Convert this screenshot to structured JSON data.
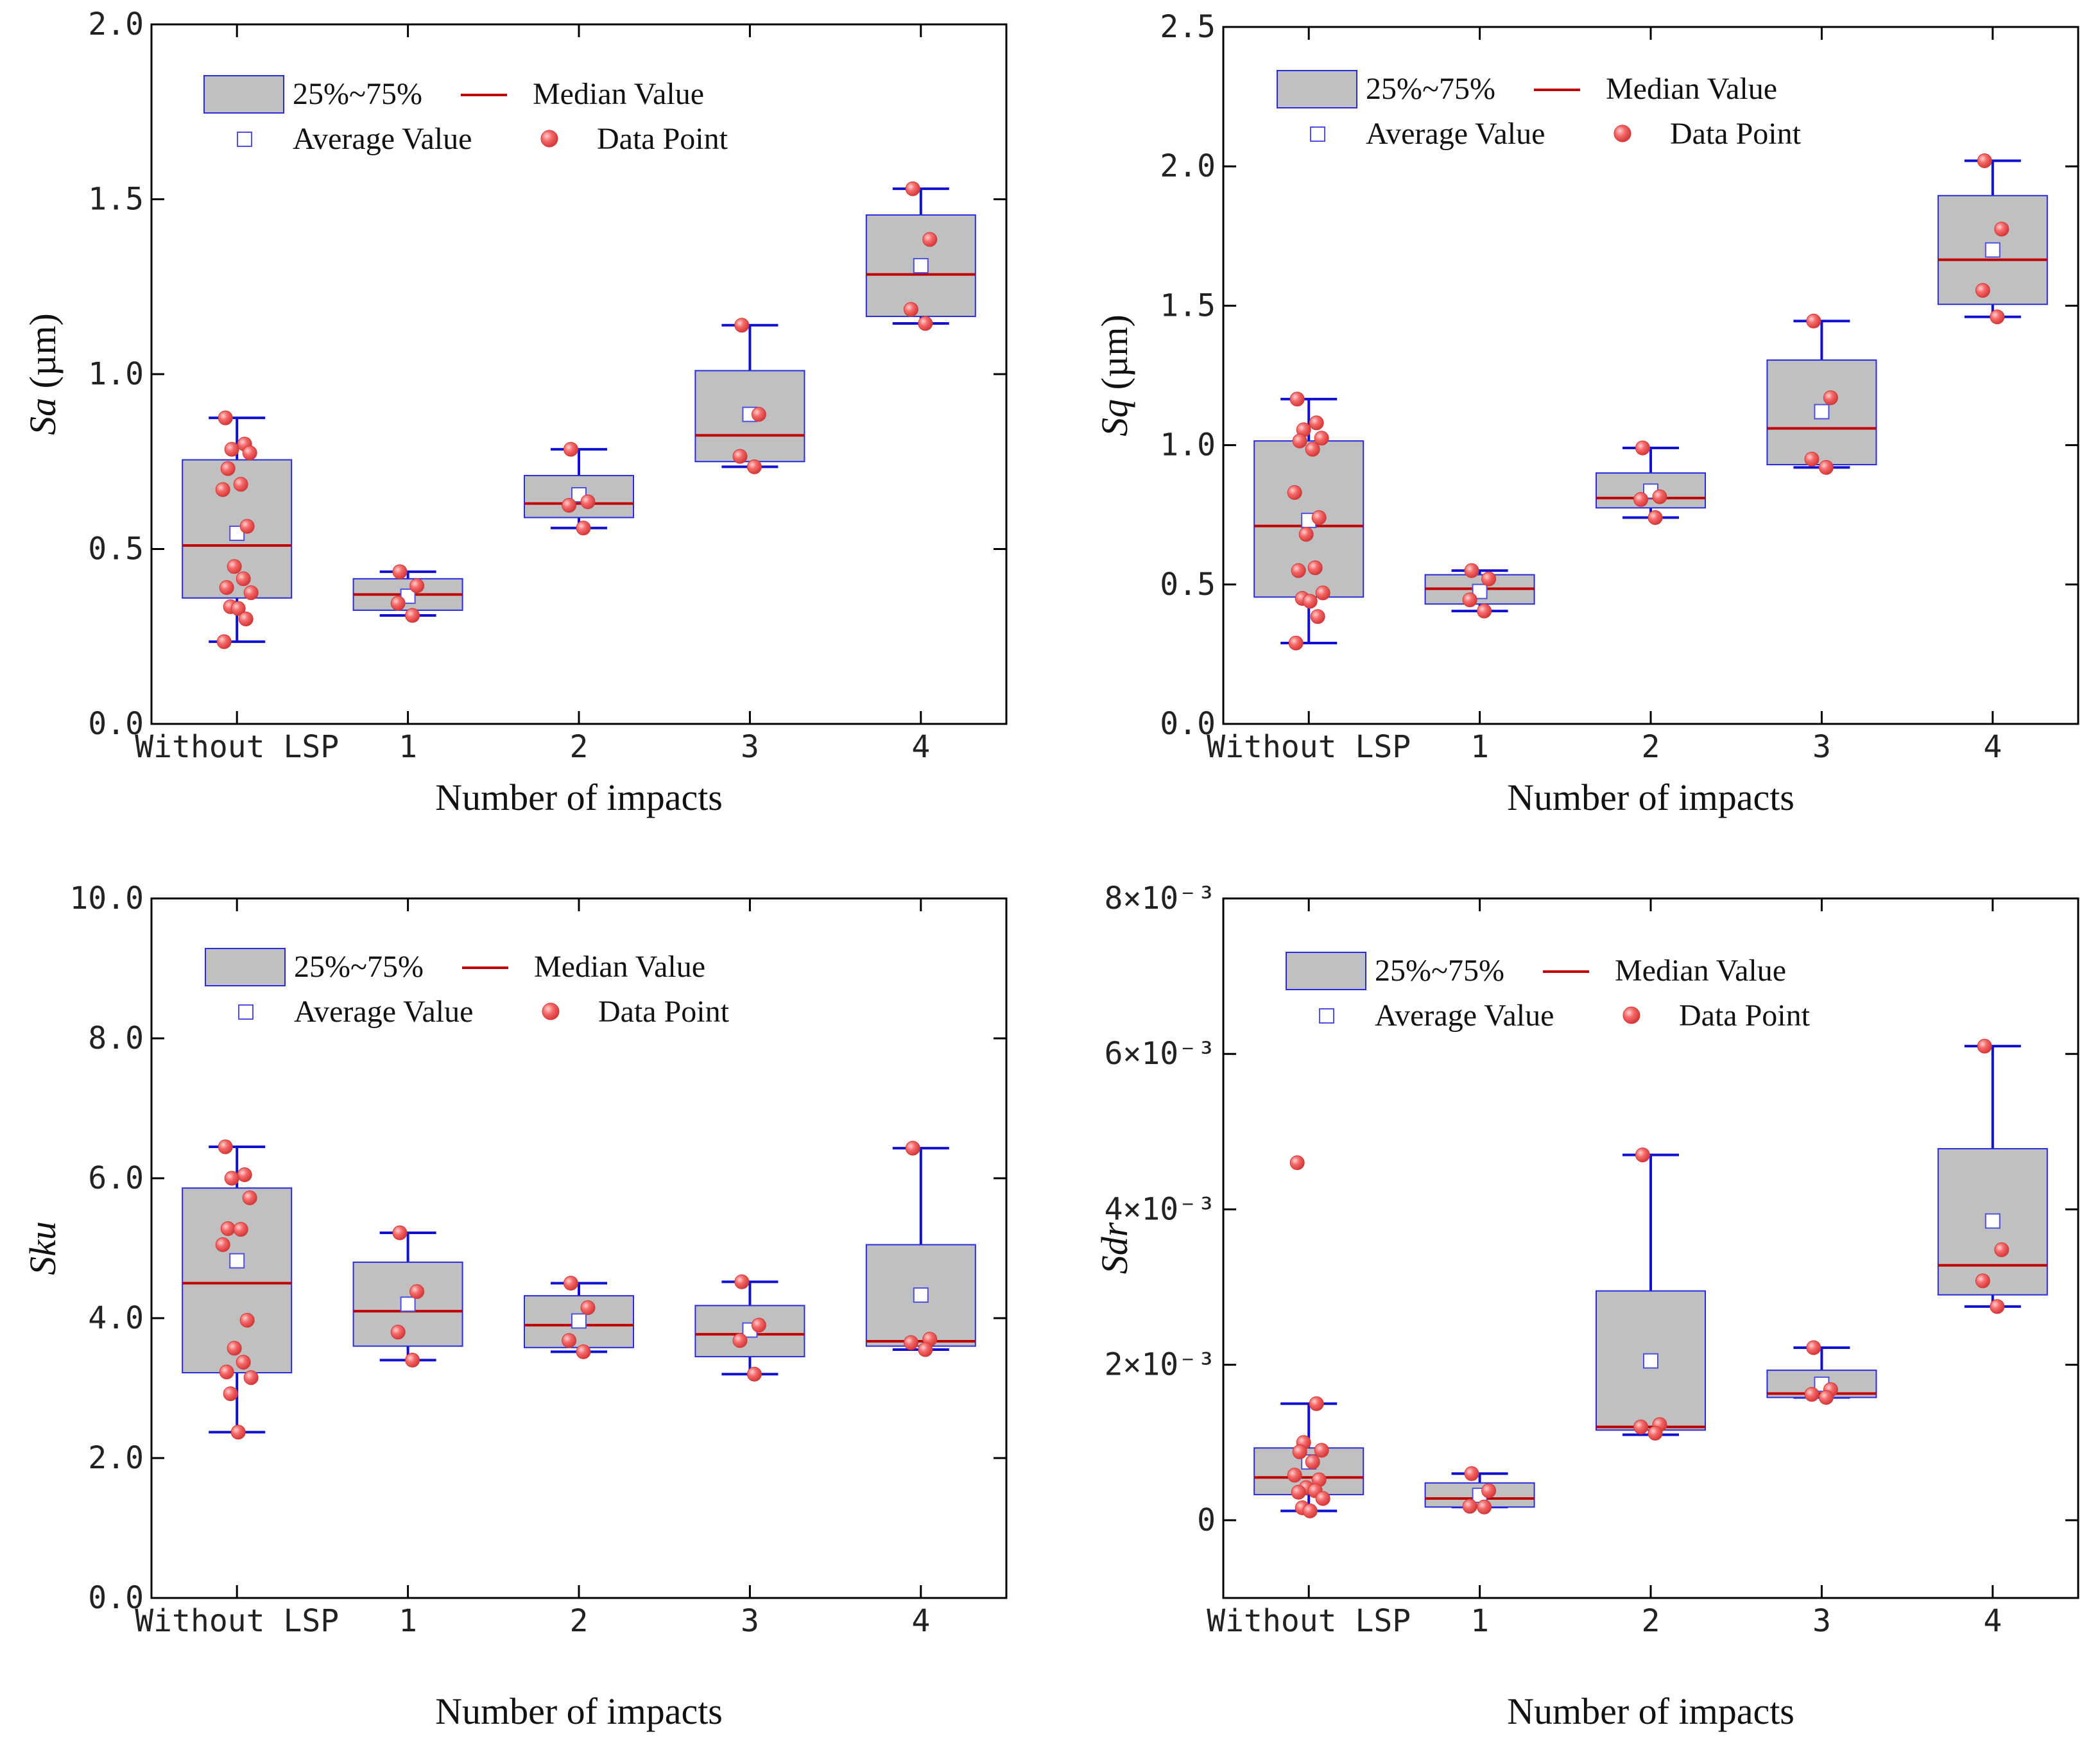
{
  "colors": {
    "box_fill": "#c0c0c0",
    "box_edge": "#2a2ae0",
    "whisker": "#1010d0",
    "median": "#c00000",
    "point": "#f25c5c",
    "mean_marker": "#5050e0",
    "axis": "#000000"
  },
  "legend": {
    "box_label": "25%~75%",
    "median_label": "Median Value",
    "mean_label": "Average Value",
    "point_label": "Data Point"
  },
  "chart_data": [
    {
      "id": "sa",
      "type": "box",
      "ylabel_italic": "Sa",
      "ylabel_suffix": " (µm)",
      "xlabel": "Number of impacts",
      "categories": [
        "Without LSP",
        "1",
        "2",
        "3",
        "4"
      ],
      "ylim": [
        0,
        2.0
      ],
      "yticks": [
        0,
        0.5,
        1.0,
        1.5,
        2.0
      ],
      "ytick_labels": [
        "0.0",
        "0.5",
        "1.0",
        "1.5",
        "2.0"
      ],
      "boxes": [
        {
          "q1": 0.36,
          "median": 0.51,
          "q3": 0.755,
          "low": 0.235,
          "high": 0.875,
          "mean": 0.545,
          "points": [
            0.875,
            0.8,
            0.785,
            0.775,
            0.73,
            0.685,
            0.67,
            0.565,
            0.45,
            0.415,
            0.39,
            0.375,
            0.335,
            0.33,
            0.3,
            0.235
          ]
        },
        {
          "q1": 0.325,
          "median": 0.37,
          "q3": 0.415,
          "low": 0.31,
          "high": 0.435,
          "mean": 0.365,
          "points": [
            0.435,
            0.395,
            0.345,
            0.31
          ]
        },
        {
          "q1": 0.59,
          "median": 0.63,
          "q3": 0.71,
          "low": 0.56,
          "high": 0.785,
          "mean": 0.655,
          "points": [
            0.785,
            0.635,
            0.625,
            0.56
          ]
        },
        {
          "q1": 0.75,
          "median": 0.825,
          "q3": 1.01,
          "low": 0.735,
          "high": 1.14,
          "mean": 0.885,
          "points": [
            1.14,
            0.885,
            0.765,
            0.735
          ]
        },
        {
          "q1": 1.165,
          "median": 1.285,
          "q3": 1.455,
          "low": 1.145,
          "high": 1.53,
          "mean": 1.31,
          "points": [
            1.53,
            1.385,
            1.185,
            1.145
          ]
        }
      ]
    },
    {
      "id": "sq",
      "type": "box",
      "ylabel_italic": "Sq",
      "ylabel_suffix": " (µm)",
      "xlabel": "Number of impacts",
      "categories": [
        "Without LSP",
        "1",
        "2",
        "3",
        "4"
      ],
      "ylim": [
        0,
        2.5
      ],
      "yticks": [
        0,
        0.5,
        1.0,
        1.5,
        2.0,
        2.5
      ],
      "ytick_labels": [
        "0.0",
        "0.5",
        "1.0",
        "1.5",
        "2.0",
        "2.5"
      ],
      "boxes": [
        {
          "q1": 0.455,
          "median": 0.71,
          "q3": 1.015,
          "low": 0.29,
          "high": 1.165,
          "mean": 0.73,
          "points": [
            1.165,
            1.08,
            1.055,
            1.025,
            1.015,
            0.985,
            0.83,
            0.74,
            0.68,
            0.56,
            0.55,
            0.47,
            0.45,
            0.44,
            0.385,
            0.29
          ]
        },
        {
          "q1": 0.43,
          "median": 0.485,
          "q3": 0.535,
          "low": 0.405,
          "high": 0.55,
          "mean": 0.475,
          "points": [
            0.55,
            0.52,
            0.445,
            0.405
          ]
        },
        {
          "q1": 0.775,
          "median": 0.81,
          "q3": 0.9,
          "low": 0.74,
          "high": 0.99,
          "mean": 0.835,
          "points": [
            0.99,
            0.815,
            0.805,
            0.74
          ]
        },
        {
          "q1": 0.93,
          "median": 1.06,
          "q3": 1.305,
          "low": 0.92,
          "high": 1.445,
          "mean": 1.12,
          "points": [
            1.445,
            1.17,
            0.95,
            0.92
          ]
        },
        {
          "q1": 1.505,
          "median": 1.665,
          "q3": 1.895,
          "low": 1.46,
          "high": 2.02,
          "mean": 1.7,
          "points": [
            2.02,
            1.775,
            1.555,
            1.46
          ]
        }
      ]
    },
    {
      "id": "sku",
      "type": "box",
      "ylabel_italic": "Sku",
      "ylabel_suffix": "",
      "xlabel": "Number of impacts",
      "categories": [
        "Without LSP",
        "1",
        "2",
        "3",
        "4"
      ],
      "ylim": [
        0,
        10.0
      ],
      "yticks": [
        0,
        2,
        4,
        6,
        8,
        10
      ],
      "ytick_labels": [
        "0.0",
        "2.0",
        "4.0",
        "6.0",
        "8.0",
        "10.0"
      ],
      "boxes": [
        {
          "q1": 3.22,
          "median": 4.5,
          "q3": 5.86,
          "low": 2.37,
          "high": 6.45,
          "mean": 4.82,
          "points": [
            6.45,
            6.05,
            6.0,
            5.72,
            5.28,
            5.27,
            5.05,
            3.97,
            3.57,
            3.37,
            3.23,
            3.15,
            2.92,
            2.37
          ]
        },
        {
          "q1": 3.6,
          "median": 4.1,
          "q3": 4.8,
          "low": 3.4,
          "high": 5.22,
          "mean": 4.2,
          "points": [
            5.22,
            4.38,
            3.8,
            3.4
          ]
        },
        {
          "q1": 3.58,
          "median": 3.9,
          "q3": 4.32,
          "low": 3.52,
          "high": 4.5,
          "mean": 3.96,
          "points": [
            4.5,
            4.15,
            3.68,
            3.52
          ]
        },
        {
          "q1": 3.45,
          "median": 3.77,
          "q3": 4.18,
          "low": 3.2,
          "high": 4.52,
          "mean": 3.83,
          "points": [
            4.52,
            3.9,
            3.68,
            3.2
          ]
        },
        {
          "q1": 3.6,
          "median": 3.67,
          "q3": 5.05,
          "low": 3.55,
          "high": 6.43,
          "mean": 4.33,
          "points": [
            6.43,
            3.7,
            3.65,
            3.55
          ]
        }
      ]
    },
    {
      "id": "sdr",
      "type": "box",
      "ylabel_italic": "Sdr",
      "ylabel_suffix": "",
      "xlabel": "Number of impacts",
      "categories": [
        "Without LSP",
        "1",
        "2",
        "3",
        "4"
      ],
      "ylim": [
        -0.001,
        0.008
      ],
      "yticks": [
        0,
        0.002,
        0.004,
        0.006,
        0.008
      ],
      "ytick_labels": [
        "0",
        "2×10⁻³",
        "4×10⁻³",
        "6×10⁻³",
        "8×10⁻³"
      ],
      "boxes": [
        {
          "q1": 0.00033,
          "median": 0.00055,
          "q3": 0.00093,
          "low": 0.00012,
          "high": 0.0015,
          "mean": 0.00075,
          "points": [
            0.0046,
            0.0015,
            0.001,
            0.0009,
            0.00088,
            0.00075,
            0.00058,
            0.00052,
            0.00042,
            0.00038,
            0.00036,
            0.00028,
            0.00016,
            0.00012
          ]
        },
        {
          "q1": 0.00017,
          "median": 0.00028,
          "q3": 0.00048,
          "low": 0.00017,
          "high": 0.0006,
          "mean": 0.00032,
          "points": [
            0.0006,
            0.00038,
            0.00018,
            0.00017
          ]
        },
        {
          "q1": 0.00116,
          "median": 0.0012,
          "q3": 0.00295,
          "low": 0.0011,
          "high": 0.0047,
          "mean": 0.00205,
          "points": [
            0.0047,
            0.00123,
            0.0012,
            0.00112
          ]
        },
        {
          "q1": 0.00158,
          "median": 0.00163,
          "q3": 0.00193,
          "low": 0.00158,
          "high": 0.00222,
          "mean": 0.00175,
          "points": [
            0.00222,
            0.00168,
            0.00162,
            0.00158
          ]
        },
        {
          "q1": 0.0029,
          "median": 0.00328,
          "q3": 0.00478,
          "low": 0.00275,
          "high": 0.0061,
          "mean": 0.00385,
          "points": [
            0.0061,
            0.00348,
            0.00308,
            0.00275
          ]
        }
      ]
    }
  ]
}
